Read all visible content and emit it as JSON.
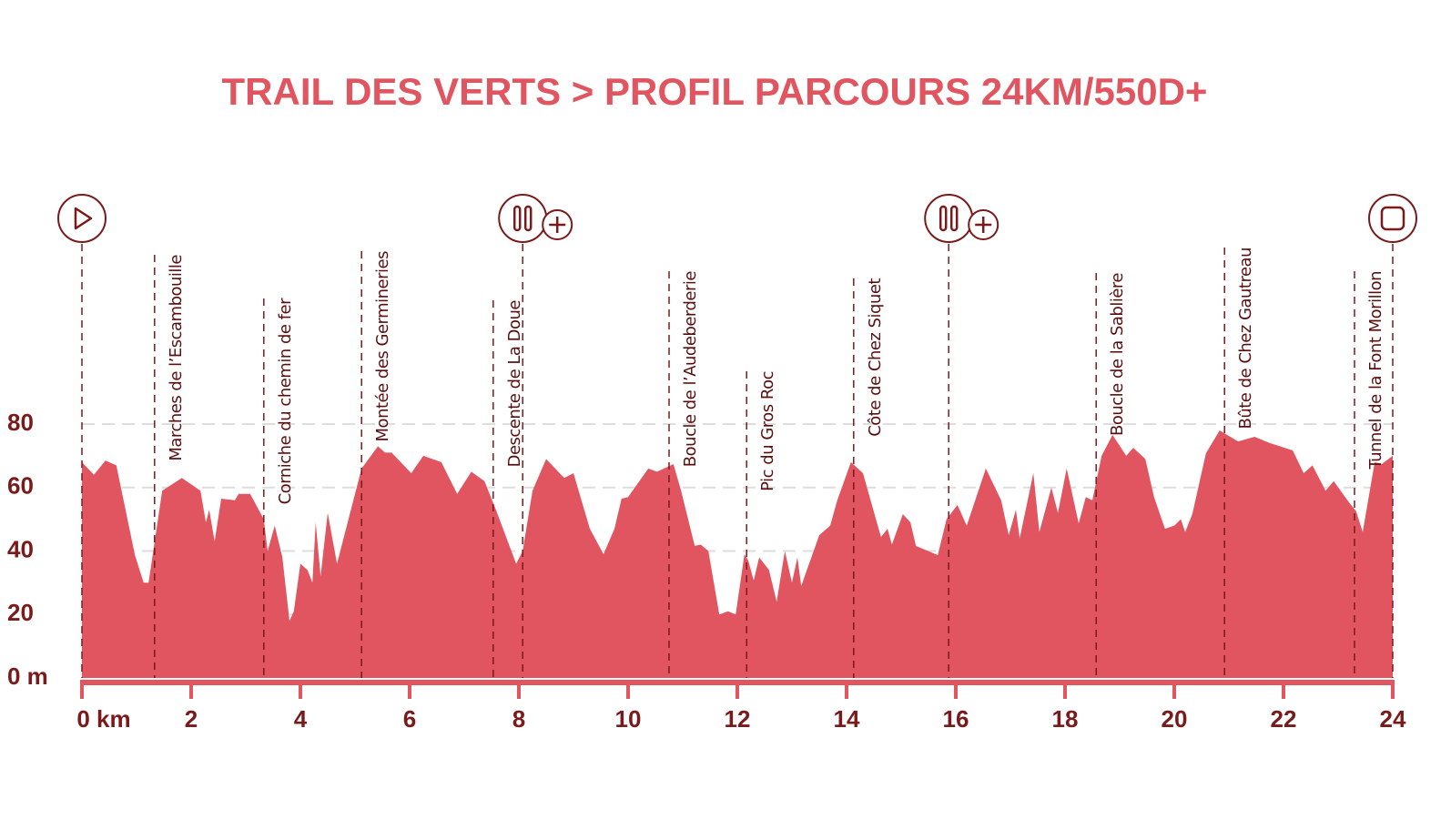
{
  "chart_data": {
    "type": "area",
    "title": "TRAIL DES VERTS > PROFIL PARCOURS 24KM/550D+",
    "color": "#e05560",
    "grid": true,
    "xlim": [
      0,
      24
    ],
    "ylim": [
      0,
      80
    ],
    "xticks": [
      {
        "value": 0,
        "label": "0 km"
      },
      2,
      4,
      6,
      8,
      10,
      12,
      14,
      16,
      18,
      20,
      22,
      24
    ],
    "yticks": [
      {
        "value": 0,
        "label": "0 m"
      },
      20,
      40,
      60,
      80
    ],
    "x": [
      0,
      0.22,
      0.43,
      0.63,
      0.97,
      1.13,
      1.22,
      1.47,
      1.83,
      2.17,
      2.27,
      2.33,
      2.43,
      2.55,
      2.8,
      2.87,
      3.08,
      3.33,
      3.4,
      3.53,
      3.67,
      3.8,
      3.88,
      4.0,
      4.13,
      4.22,
      4.28,
      4.37,
      4.5,
      4.67,
      5.12,
      5.42,
      5.55,
      5.67,
      6.03,
      6.25,
      6.58,
      6.87,
      7.13,
      7.37,
      7.58,
      7.95,
      8.07,
      8.25,
      8.5,
      8.83,
      9.0,
      9.3,
      9.55,
      9.75,
      9.88,
      10.0,
      10.37,
      10.53,
      10.83,
      10.97,
      11.22,
      11.33,
      11.47,
      11.67,
      11.83,
      11.97,
      12.13,
      12.2,
      12.3,
      12.4,
      12.58,
      12.72,
      12.87,
      13.0,
      13.1,
      13.17,
      13.5,
      13.7,
      13.83,
      14.08,
      14.3,
      14.63,
      14.75,
      14.83,
      15.03,
      15.17,
      15.27,
      15.67,
      15.83,
      16.03,
      16.2,
      16.55,
      16.83,
      16.97,
      17.1,
      17.17,
      17.42,
      17.53,
      17.75,
      17.87,
      18.03,
      18.25,
      18.38,
      18.5,
      18.67,
      18.87,
      19.12,
      19.25,
      19.47,
      19.63,
      19.83,
      20.0,
      20.12,
      20.2,
      20.33,
      20.58,
      20.83,
      21.17,
      21.47,
      21.75,
      22.17,
      22.37,
      22.53,
      22.77,
      22.92,
      23.17,
      23.33,
      23.45,
      23.67,
      23.8,
      24
    ],
    "values": [
      68,
      64,
      68.5,
      67,
      38.7,
      30,
      30,
      59,
      63,
      59,
      49,
      53,
      43,
      56.5,
      56,
      58,
      58,
      50,
      40,
      48,
      38,
      18,
      21,
      36,
      34,
      30,
      49,
      32,
      52,
      36,
      66,
      73,
      71,
      71,
      64.5,
      70,
      68,
      58,
      65,
      62,
      53,
      36,
      40,
      59,
      69,
      63,
      64.5,
      47,
      39,
      47,
      56.5,
      57,
      66,
      65,
      67.4,
      59,
      41.6,
      42,
      40,
      20,
      21,
      20,
      39,
      37,
      30.7,
      38,
      34,
      24,
      40,
      30,
      38,
      29,
      45,
      48,
      56,
      68,
      64.5,
      44.4,
      47,
      42,
      51.6,
      49,
      41.6,
      38.7,
      50,
      54.5,
      48,
      66,
      56,
      45,
      53,
      44,
      64.5,
      46,
      60,
      52,
      66,
      48.7,
      57,
      56,
      70,
      76.6,
      70,
      72.5,
      69,
      57,
      47,
      48,
      50,
      46,
      51.6,
      70.8,
      78,
      74.5,
      76,
      74,
      71.7,
      64.5,
      67,
      59,
      62,
      56,
      52.5,
      46,
      68,
      67.4,
      70
    ],
    "annotations": [
      {
        "x": 1.33,
        "label": "Marches de l’Escambouille"
      },
      {
        "x": 3.33,
        "label": "Corniche du chemin de fer"
      },
      {
        "x": 5.12,
        "label": "Montée des Germineries"
      },
      {
        "x": 7.53,
        "label": "Descente de La Doue"
      },
      {
        "x": 10.75,
        "label": "Boucle de l’Audeberderie"
      },
      {
        "x": 12.17,
        "label": "Pic du Gros Roc"
      },
      {
        "x": 14.13,
        "label": "Côte de Chez Siquet"
      },
      {
        "x": 18.57,
        "label": "Boucle de la Sablière"
      },
      {
        "x": 20.92,
        "label": "Bûte de Chez Gautreau"
      },
      {
        "x": 23.3,
        "label": "Tunnel de la Font Morillon"
      }
    ],
    "checkpoints": [
      0,
      8.07,
      15.87,
      24
    ]
  }
}
